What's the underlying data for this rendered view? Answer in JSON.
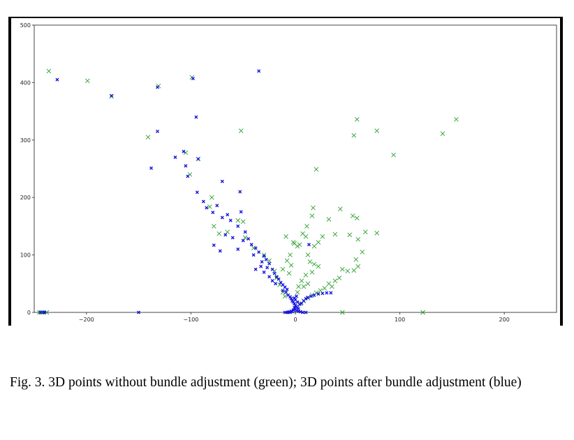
{
  "caption": "Fig. 3.  3D points without bundle adjustment (green); 3D points after bundle adjustment (blue)",
  "chart_data": {
    "type": "scatter",
    "title": "",
    "xlabel": "",
    "ylabel": "",
    "xlim": [
      -250,
      250
    ],
    "ylim": [
      0,
      500
    ],
    "xticks": [
      -200,
      -100,
      0,
      100,
      200
    ],
    "yticks": [
      0,
      100,
      200,
      300,
      400,
      500
    ],
    "x_tick_labels": [
      "−200",
      "−100",
      "0",
      "100",
      "200"
    ],
    "y_tick_labels": [
      "0",
      "100",
      "200",
      "300",
      "400",
      "500"
    ],
    "grid": false,
    "legend": "none",
    "series": [
      {
        "color": "#2ca02c",
        "marker": "x",
        "points": [
          [
            -236,
            420
          ],
          [
            -199,
            403
          ],
          [
            -176,
            376
          ],
          [
            -131,
            394
          ],
          [
            -99,
            409
          ],
          [
            -141,
            305
          ],
          [
            -52,
            316
          ],
          [
            -93,
            267
          ],
          [
            -105,
            278
          ],
          [
            -101,
            240
          ],
          [
            -80,
            200
          ],
          [
            -82,
            184
          ],
          [
            -78,
            150
          ],
          [
            -73,
            137
          ],
          [
            -55,
            160
          ],
          [
            -50,
            158
          ],
          [
            -65,
            140
          ],
          [
            -48,
            130
          ],
          [
            -40,
            112
          ],
          [
            -30,
            100
          ],
          [
            -25,
            90
          ],
          [
            -20,
            72
          ],
          [
            -18,
            60
          ],
          [
            -15,
            48
          ],
          [
            -12,
            35
          ],
          [
            -10,
            28
          ],
          [
            20,
            249
          ],
          [
            17,
            182
          ],
          [
            16,
            168
          ],
          [
            32,
            162
          ],
          [
            43,
            180
          ],
          [
            55,
            168
          ],
          [
            59,
            164
          ],
          [
            56,
            308
          ],
          [
            59,
            336
          ],
          [
            78,
            316
          ],
          [
            94,
            274
          ],
          [
            141,
            311
          ],
          [
            154,
            336
          ],
          [
            11,
            150
          ],
          [
            7,
            137
          ],
          [
            10,
            132
          ],
          [
            -9,
            132
          ],
          [
            -2,
            122
          ],
          [
            2,
            115
          ],
          [
            4,
            118
          ],
          [
            18,
            115
          ],
          [
            22,
            122
          ],
          [
            26,
            132
          ],
          [
            38,
            136
          ],
          [
            52,
            135
          ],
          [
            60,
            127
          ],
          [
            64,
            105
          ],
          [
            67,
            140
          ],
          [
            78,
            138
          ],
          [
            58,
            92
          ],
          [
            45,
            75
          ],
          [
            50,
            72
          ],
          [
            56,
            73
          ],
          [
            60,
            80
          ],
          [
            42,
            60
          ],
          [
            38,
            55
          ],
          [
            32,
            50
          ],
          [
            35,
            45
          ],
          [
            28,
            42
          ],
          [
            24,
            38
          ],
          [
            20,
            34
          ],
          [
            16,
            30
          ],
          [
            12,
            25
          ],
          [
            8,
            20
          ],
          [
            5,
            15
          ],
          [
            12,
            100
          ],
          [
            14,
            88
          ],
          [
            18,
            84
          ],
          [
            22,
            80
          ],
          [
            16,
            70
          ],
          [
            10,
            65
          ],
          [
            6,
            55
          ],
          [
            3,
            45
          ],
          [
            2,
            35
          ],
          [
            8,
            45
          ],
          [
            12,
            50
          ],
          [
            -1,
            120
          ],
          [
            -5,
            100
          ],
          [
            -8,
            90
          ],
          [
            -12,
            75
          ],
          [
            -4,
            82
          ],
          [
            -6,
            68
          ],
          [
            45,
            0
          ],
          [
            122,
            0
          ],
          [
            -245,
            0
          ],
          [
            -243,
            0
          ],
          [
            -238,
            0
          ]
        ]
      },
      {
        "color": "#1515e0",
        "marker": "x",
        "points": [
          [
            -228,
            405
          ],
          [
            -35,
            420
          ],
          [
            -98,
            407
          ],
          [
            -132,
            392
          ],
          [
            -176,
            377
          ],
          [
            -95,
            340
          ],
          [
            -132,
            315
          ],
          [
            -107,
            280
          ],
          [
            -115,
            270
          ],
          [
            -93,
            267
          ],
          [
            -105,
            255
          ],
          [
            -103,
            237
          ],
          [
            -138,
            251
          ],
          [
            -70,
            228
          ],
          [
            -53,
            210
          ],
          [
            -94,
            209
          ],
          [
            -88,
            193
          ],
          [
            -85,
            182
          ],
          [
            -75,
            186
          ],
          [
            -79,
            174
          ],
          [
            -70,
            165
          ],
          [
            -65,
            170
          ],
          [
            -62,
            160
          ],
          [
            -52,
            175
          ],
          [
            -55,
            150
          ],
          [
            -48,
            140
          ],
          [
            -45,
            128
          ],
          [
            -50,
            125
          ],
          [
            -60,
            130
          ],
          [
            -67,
            135
          ],
          [
            -78,
            117
          ],
          [
            -72,
            107
          ],
          [
            -55,
            110
          ],
          [
            -42,
            118
          ],
          [
            -38,
            112
          ],
          [
            -35,
            105
          ],
          [
            -40,
            100
          ],
          [
            -30,
            98
          ],
          [
            -28,
            92
          ],
          [
            -32,
            88
          ],
          [
            -25,
            85
          ],
          [
            -27,
            78
          ],
          [
            -22,
            75
          ],
          [
            -20,
            68
          ],
          [
            -18,
            62
          ],
          [
            -16,
            58
          ],
          [
            -14,
            52
          ],
          [
            -12,
            48
          ],
          [
            -10,
            44
          ],
          [
            -8,
            40
          ],
          [
            -25,
            62
          ],
          [
            -22,
            55
          ],
          [
            -19,
            50
          ],
          [
            -30,
            70
          ],
          [
            -33,
            80
          ],
          [
            -38,
            75
          ],
          [
            -12,
            38
          ],
          [
            -9,
            35
          ],
          [
            -7,
            30
          ],
          [
            -5,
            27
          ],
          [
            -4,
            24
          ],
          [
            -3,
            20
          ],
          [
            -2,
            18
          ],
          [
            -1,
            15
          ],
          [
            0,
            12
          ],
          [
            1,
            10
          ],
          [
            2,
            8
          ],
          [
            3,
            6
          ],
          [
            0,
            22
          ],
          [
            -1,
            25
          ],
          [
            1,
            28
          ],
          [
            2,
            18
          ],
          [
            4,
            14
          ],
          [
            6,
            16
          ],
          [
            8,
            20
          ],
          [
            10,
            24
          ],
          [
            12,
            26
          ],
          [
            15,
            28
          ],
          [
            18,
            30
          ],
          [
            22,
            32
          ],
          [
            26,
            33
          ],
          [
            30,
            34
          ],
          [
            34,
            34
          ],
          [
            13,
            118
          ],
          [
            -1,
            8
          ],
          [
            0,
            5
          ],
          [
            1,
            3
          ],
          [
            -2,
            4
          ],
          [
            3,
            2
          ],
          [
            -3,
            1
          ],
          [
            5,
            1
          ],
          [
            -5,
            0
          ],
          [
            7,
            0
          ],
          [
            -7,
            0
          ],
          [
            10,
            0
          ],
          [
            -10,
            0
          ],
          [
            -150,
            0
          ],
          [
            -244,
            0
          ],
          [
            -241,
            0
          ],
          [
            -240,
            0
          ],
          [
            -8,
            0
          ],
          [
            -6,
            1
          ],
          [
            -4,
            2
          ]
        ]
      }
    ]
  }
}
